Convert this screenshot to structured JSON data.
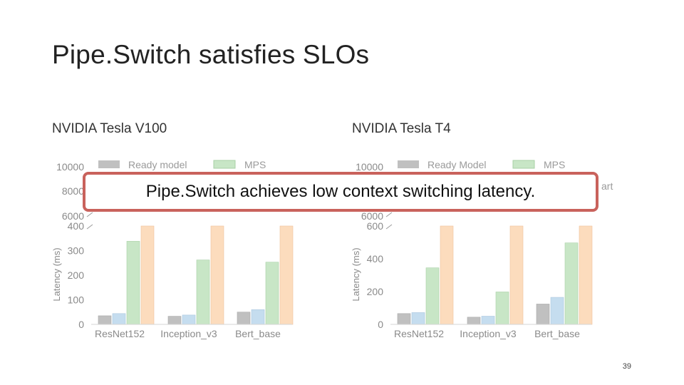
{
  "slide": {
    "title": "Pipe.Switch satisfies SLOs",
    "callout": "Pipe.Switch achieves low context switching latency.",
    "page_number": "39"
  },
  "colors": {
    "Ready model": "#c0c0c0",
    "PipeSwitch": "#c5ddef",
    "MPS": "#c8e6c6",
    "Stop-and-start": "#fcdcbd",
    "callout_border": "#c9625c"
  },
  "chart_data": [
    {
      "type": "bar",
      "subtitle": "NVIDIA Tesla V100",
      "categories": [
        "ResNet152",
        "Inception_v3",
        "Bert_base"
      ],
      "ylabel": "Latency (ms)",
      "broken_axis": true,
      "lower_ylim": [
        0,
        400
      ],
      "lower_ticks": [
        "0",
        "100",
        "200",
        "300",
        "400"
      ],
      "upper_ticks": [
        "6000",
        "8000",
        "10000"
      ],
      "legend_visible": [
        "Ready model",
        "MPS"
      ],
      "series": [
        {
          "name": "Ready model",
          "values": [
            35,
            33,
            50
          ]
        },
        {
          "values": [
            44,
            38,
            60
          ]
        },
        {
          "name": "MPS",
          "values": [
            338,
            262,
            253
          ]
        },
        {
          "values": [
            400,
            400,
            400
          ]
        }
      ]
    },
    {
      "type": "bar",
      "subtitle": "NVIDIA Tesla T4",
      "categories": [
        "ResNet152",
        "Inception_v3",
        "Bert_base"
      ],
      "ylabel": "Latency (ms)",
      "broken_axis": true,
      "lower_ylim": [
        0,
        600
      ],
      "lower_ticks": [
        "0",
        "200",
        "400",
        "600"
      ],
      "upper_ticks": [
        "6000",
        "10000"
      ],
      "legend_visible": [
        "Ready Model",
        "MPS"
      ],
      "legend_fragment": "art",
      "series": [
        {
          "name": "Ready Model",
          "values": [
            66,
            44,
            124
          ]
        },
        {
          "values": [
            72,
            50,
            165
          ]
        },
        {
          "name": "MPS",
          "values": [
            345,
            198,
            497
          ]
        },
        {
          "values": [
            600,
            600,
            600
          ]
        }
      ]
    }
  ]
}
